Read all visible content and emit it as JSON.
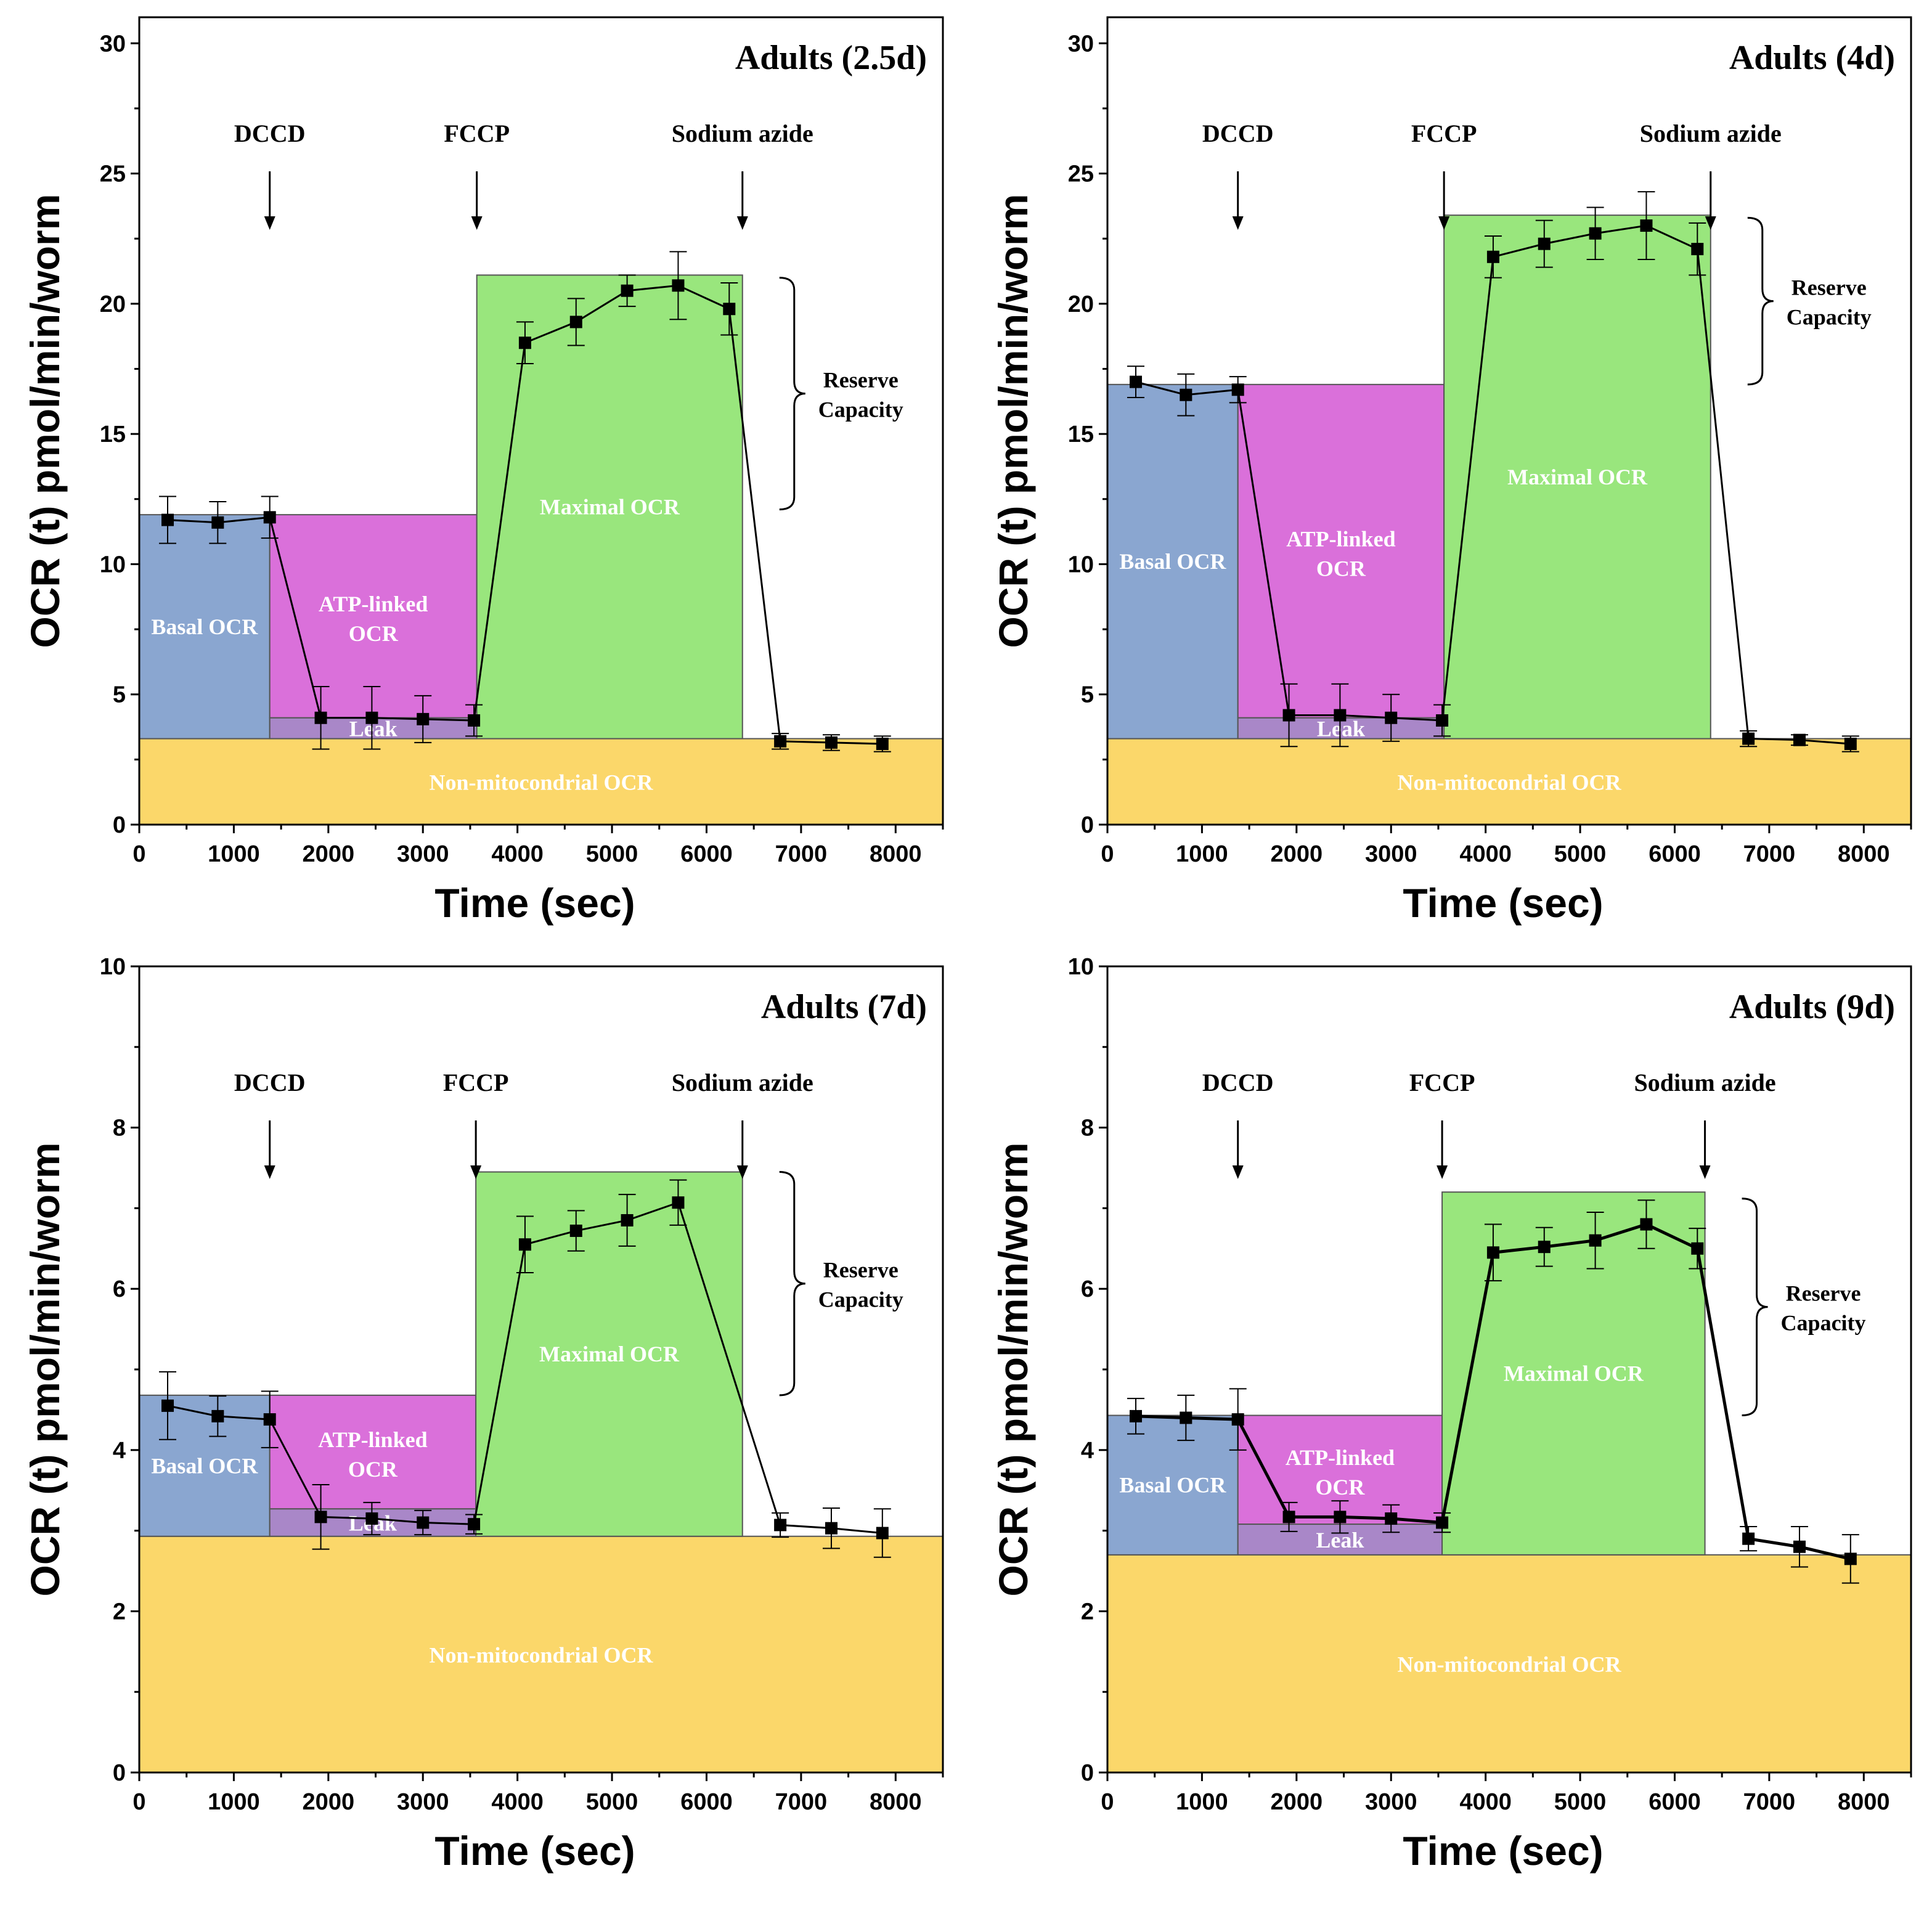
{
  "colors": {
    "basal": "#8aa6d0",
    "atp": "#da70da",
    "leak": "#a987c8",
    "maximal": "#99e67d",
    "nonmito": "#fbd76a",
    "line": "#000000",
    "frame": "#555555"
  },
  "labels": {
    "xlabel": "Time (sec)",
    "ylabel": "OCR (t) pmol/min/worm",
    "drug1": "DCCD",
    "drug2": "FCCP",
    "drug3": "Sodium azide",
    "reserve1": "Reserve",
    "reserve2": "Capacity",
    "basal": "Basal OCR",
    "atp1": "ATP-linked",
    "atp2": "OCR",
    "leak": "Leak",
    "maximal_a": "Maximal  OCR",
    "maximal_b": "Maximal OCR",
    "nonmito": "Non-mitocondrial OCR"
  },
  "chart_data": [
    {
      "id": "p1",
      "type": "line",
      "title": "Adults (2.5d)",
      "xlabel": "Time (sec)",
      "ylabel": "OCR (t) pmol/min/worm",
      "xlim": [
        0,
        8500
      ],
      "ylim": [
        0,
        31
      ],
      "xticks": [
        0,
        1000,
        2000,
        3000,
        4000,
        5000,
        6000,
        7000,
        8000
      ],
      "yticks": [
        0,
        5,
        10,
        15,
        20,
        25,
        30
      ],
      "x": [
        300,
        830,
        1380,
        1920,
        2460,
        3000,
        3540,
        4080,
        4620,
        5160,
        5700,
        6240,
        6780,
        7320,
        7860
      ],
      "y": [
        11.7,
        11.6,
        11.8,
        4.1,
        4.1,
        4.05,
        4.0,
        18.5,
        19.3,
        20.5,
        20.7,
        19.8,
        3.2,
        3.15,
        3.1
      ],
      "err": [
        0.9,
        0.8,
        0.8,
        1.2,
        1.2,
        0.9,
        0.6,
        0.8,
        0.9,
        0.6,
        1.3,
        1.0,
        0.3,
        0.3,
        0.3
      ],
      "regions": {
        "nonmito_top": 3.3,
        "leak_top": 4.1,
        "basal_top": 11.9,
        "atp_top": 11.9,
        "max_top": 21.1,
        "inj1": 1380,
        "inj2": 3570,
        "inj3": 6380
      },
      "reserve_range": [
        12.1,
        21.0
      ]
    },
    {
      "id": "p2",
      "type": "line",
      "title": "Adults (4d)",
      "xlabel": "Time (sec)",
      "ylabel": "OCR (t) pmol/min/worm",
      "xlim": [
        0,
        8500
      ],
      "ylim": [
        0,
        31
      ],
      "xticks": [
        0,
        1000,
        2000,
        3000,
        4000,
        5000,
        6000,
        7000,
        8000
      ],
      "yticks": [
        0,
        5,
        10,
        15,
        20,
        25,
        30
      ],
      "x": [
        300,
        830,
        1380,
        1920,
        2460,
        3000,
        3540,
        4080,
        4620,
        5160,
        5700,
        6240,
        6780,
        7320,
        7860
      ],
      "y": [
        17.0,
        16.5,
        16.7,
        4.2,
        4.2,
        4.1,
        4.0,
        21.8,
        22.3,
        22.7,
        23.0,
        22.1,
        3.3,
        3.25,
        3.1
      ],
      "err": [
        0.6,
        0.8,
        0.5,
        1.2,
        1.2,
        0.9,
        0.6,
        0.8,
        0.9,
        1.0,
        1.3,
        1.0,
        0.3,
        0.2,
        0.3
      ],
      "regions": {
        "nonmito_top": 3.3,
        "leak_top": 4.1,
        "basal_top": 16.9,
        "atp_top": 16.9,
        "max_top": 23.4,
        "inj1": 1380,
        "inj2": 3560,
        "inj3": 6380
      },
      "reserve_range": [
        16.9,
        23.3
      ]
    },
    {
      "id": "p3",
      "type": "line",
      "title": "Adults (7d)",
      "xlabel": "Time (sec)",
      "ylabel": "OCR (t) pmol/min/worm",
      "xlim": [
        0,
        8500
      ],
      "ylim": [
        0,
        10
      ],
      "xticks": [
        0,
        1000,
        2000,
        3000,
        4000,
        5000,
        6000,
        7000,
        8000
      ],
      "yticks": [
        0,
        2,
        4,
        6,
        8,
        10
      ],
      "x": [
        300,
        830,
        1380,
        1920,
        2460,
        3000,
        3540,
        4080,
        4620,
        5160,
        5700,
        6780,
        7320,
        7860
      ],
      "y": [
        4.55,
        4.42,
        4.38,
        3.17,
        3.15,
        3.1,
        3.08,
        6.55,
        6.72,
        6.85,
        7.07,
        3.07,
        3.03,
        2.97
      ],
      "err": [
        0.42,
        0.25,
        0.35,
        0.4,
        0.2,
        0.15,
        0.12,
        0.35,
        0.25,
        0.32,
        0.28,
        0.15,
        0.25,
        0.3
      ],
      "regions": {
        "nonmito_top": 2.93,
        "leak_top": 3.27,
        "basal_top": 4.68,
        "atp_top": 4.68,
        "max_top": 7.45,
        "inj1": 1380,
        "inj2": 3560,
        "inj3": 6380
      },
      "reserve_range": [
        4.68,
        7.45
      ]
    },
    {
      "id": "p4",
      "type": "line",
      "title": "Adults (9d)",
      "xlabel": "Time (sec)",
      "ylabel": "OCR (t) pmol/min/worm",
      "xlim": [
        0,
        8500
      ],
      "ylim": [
        0,
        10
      ],
      "xticks": [
        0,
        1000,
        2000,
        3000,
        4000,
        5000,
        6000,
        7000,
        8000
      ],
      "yticks": [
        0,
        2,
        4,
        6,
        8,
        10
      ],
      "x": [
        300,
        830,
        1380,
        1920,
        2460,
        3000,
        3540,
        4080,
        4620,
        5160,
        5700,
        6240,
        6780,
        7320,
        7860
      ],
      "y": [
        4.42,
        4.4,
        4.38,
        3.17,
        3.17,
        3.15,
        3.1,
        6.45,
        6.52,
        6.6,
        6.8,
        6.5,
        2.9,
        2.8,
        2.65
      ],
      "err": [
        0.22,
        0.28,
        0.38,
        0.18,
        0.2,
        0.17,
        0.12,
        0.35,
        0.24,
        0.35,
        0.3,
        0.25,
        0.15,
        0.25,
        0.3
      ],
      "regions": {
        "nonmito_top": 2.7,
        "leak_top": 3.08,
        "basal_top": 4.43,
        "atp_top": 4.43,
        "max_top": 7.2,
        "inj1": 1380,
        "inj2": 3540,
        "inj3": 6320
      },
      "reserve_range": [
        4.43,
        7.12
      ]
    }
  ]
}
